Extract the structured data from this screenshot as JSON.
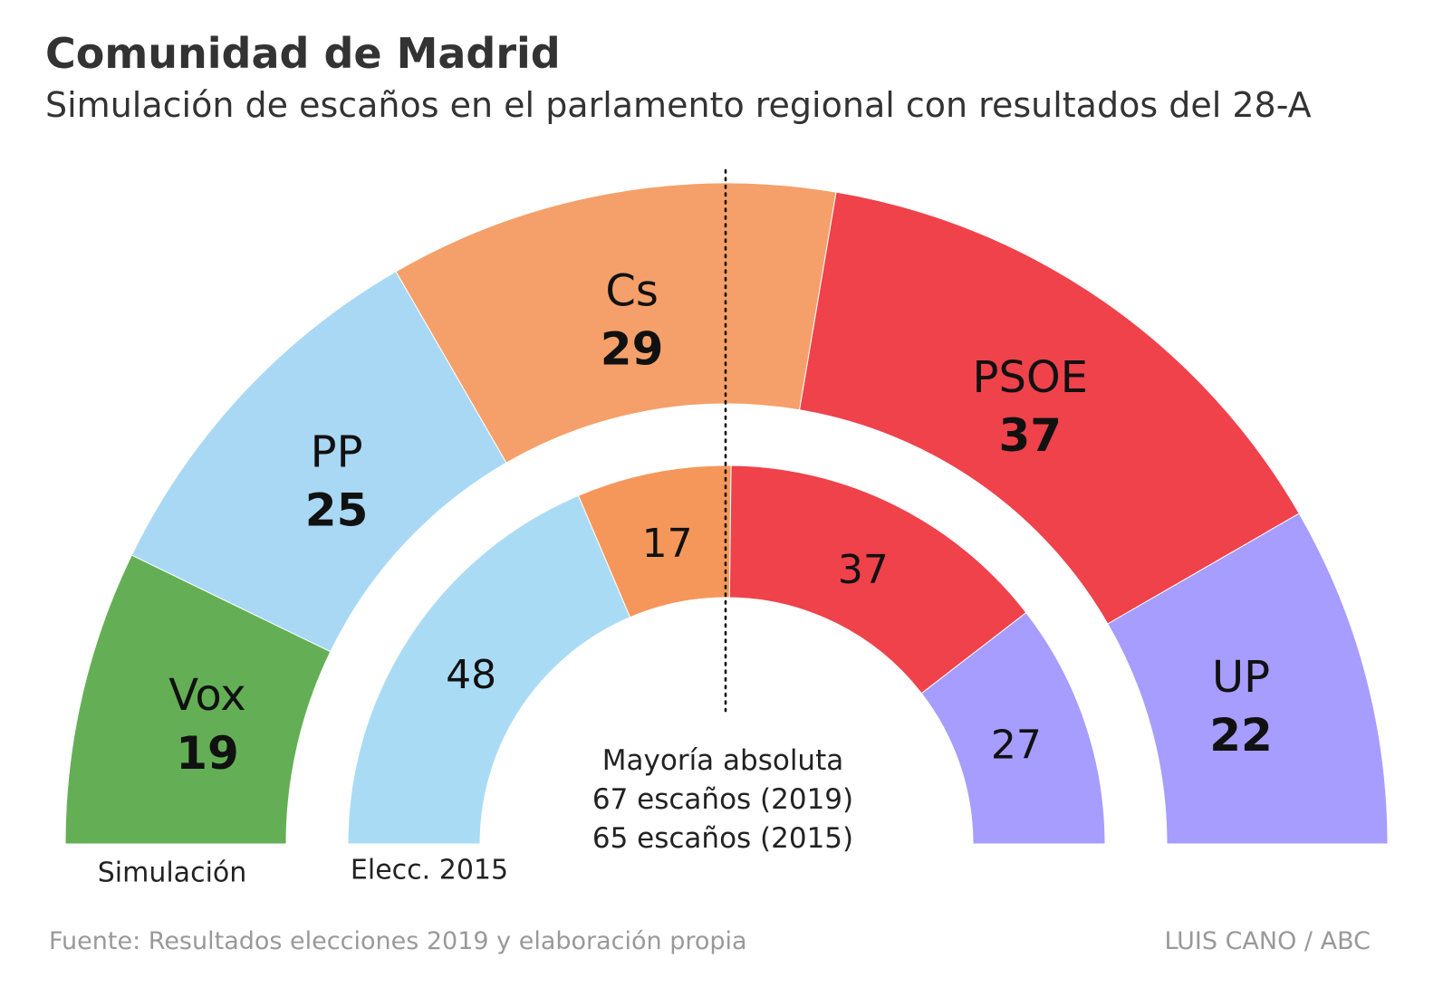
{
  "title": "Comunidad de Madrid",
  "subtitle": "Simulación de escaños en el parlamento regional con resultados del 28-A",
  "chart_data": {
    "type": "parliament-hemicycle",
    "rings": [
      {
        "name": "Simulación",
        "total_seats": 132,
        "majority": 67,
        "parties": [
          {
            "party": "Vox",
            "seats": 19,
            "color": "#64af55"
          },
          {
            "party": "PP",
            "seats": 25,
            "color": "#a8d8f4"
          },
          {
            "party": "Cs",
            "seats": 29,
            "color": "#f5a06a"
          },
          {
            "party": "PSOE",
            "seats": 37,
            "color": "#ef424b"
          },
          {
            "party": "UP",
            "seats": 22,
            "color": "#a69dff"
          }
        ]
      },
      {
        "name": "Elecc. 2015",
        "total_seats": 129,
        "majority": 65,
        "parties": [
          {
            "party": "PP",
            "seats": 48,
            "color": "#aadbf5"
          },
          {
            "party": "Cs",
            "seats": 17,
            "color": "#f5975a"
          },
          {
            "party": "PSOE",
            "seats": 37,
            "color": "#ef424b"
          },
          {
            "party": "UP",
            "seats": 27,
            "color": "#a69dff"
          }
        ]
      }
    ],
    "majority_label": [
      "Mayoría absoluta",
      "67 escaños (2019)",
      "65 escaños (2015)"
    ]
  },
  "source": "Fuente: Resultados elecciones 2019 y elaboración propia",
  "credit": "LUIS CANO / ABC"
}
